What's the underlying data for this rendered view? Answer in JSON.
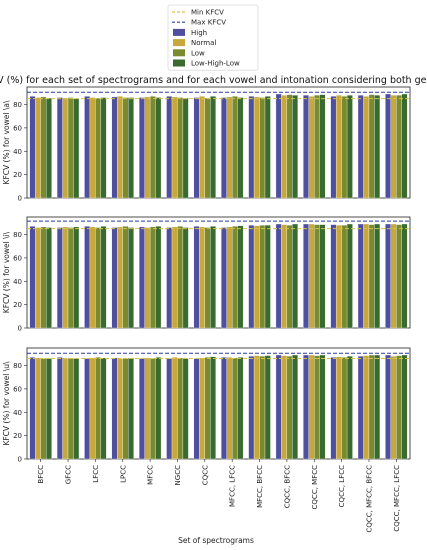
{
  "chart_data": {
    "type": "bar",
    "title": "KFCV (%) for each set of spectrograms and for each vowel and intonation considering both genders",
    "xlabel": "Set of spectrograms",
    "categories": [
      "BFCC",
      "GFCC",
      "LFCC",
      "LPCC",
      "MFCC",
      "NGCC",
      "CQCC",
      "MFCC, LFCC",
      "MFCC, BFCC",
      "CQCC, BFCC",
      "CQCC, MFCC",
      "CQCC, LFCC",
      "CQCC, MFCC, BFCC",
      "CQCC, MFCC, LFCC"
    ],
    "legend": {
      "position": "top-center",
      "entries": [
        {
          "label": "Min KFCV",
          "kind": "line",
          "color": "#d4c24a"
        },
        {
          "label": "Max KFCV",
          "kind": "line",
          "color": "#2b3b9c"
        },
        {
          "label": "High",
          "kind": "bar",
          "color": "#4f4fa0"
        },
        {
          "label": "Normal",
          "kind": "bar",
          "color": "#c8a83c"
        },
        {
          "label": "Low",
          "kind": "bar",
          "color": "#7a8a2e"
        },
        {
          "label": "Low-High-Low",
          "kind": "bar",
          "color": "#3a6b2e"
        }
      ]
    },
    "panels": [
      {
        "ylabel": "KFCV (%) for vowel \\a\\",
        "ylim": [
          0,
          95
        ],
        "yticks": [
          0,
          20,
          40,
          60,
          80
        ],
        "min_kfcv": 85,
        "max_kfcv": 90.5,
        "series": [
          {
            "name": "High",
            "values": [
              87,
              86,
              87,
              86.5,
              86,
              87,
              86,
              86,
              87,
              89,
              88,
              87,
              88,
              89
            ]
          },
          {
            "name": "Normal",
            "values": [
              86,
              85.5,
              86,
              87,
              86.5,
              86.5,
              87,
              86.5,
              86.5,
              88,
              87,
              88,
              87,
              88
            ]
          },
          {
            "name": "Low",
            "values": [
              86.5,
              86,
              85.5,
              86,
              87,
              86,
              85.5,
              87,
              86,
              88.5,
              88,
              87,
              88.5,
              88
            ]
          },
          {
            "name": "Low-High-Low",
            "values": [
              85.5,
              85,
              86,
              86,
              86,
              85.5,
              87,
              86,
              87,
              88,
              88.5,
              88,
              88,
              89
            ]
          }
        ]
      },
      {
        "ylabel": "KFCV (%) for vowel \\i\\",
        "ylim": [
          0,
          95
        ],
        "yticks": [
          0,
          20,
          40,
          60,
          80
        ],
        "min_kfcv": 85,
        "max_kfcv": 91.5,
        "series": [
          {
            "name": "High",
            "values": [
              87,
              86,
              87,
              86,
              86.5,
              86,
              87,
              86,
              88,
              89,
              89,
              88.5,
              89,
              89
            ]
          },
          {
            "name": "Normal",
            "values": [
              86,
              86.5,
              86.5,
              86.5,
              86,
              86.5,
              86.5,
              86.5,
              87.5,
              88.5,
              89,
              88,
              89,
              89
            ]
          },
          {
            "name": "Low",
            "values": [
              86.5,
              86,
              86,
              87,
              86.5,
              87,
              86,
              87,
              88,
              88,
              88.5,
              88,
              88.5,
              88.5
            ]
          },
          {
            "name": "Low-High-Low",
            "values": [
              86,
              86.5,
              87,
              86,
              87,
              86,
              87,
              87.5,
              88,
              89,
              88.5,
              89,
              89,
              89
            ]
          }
        ]
      },
      {
        "ylabel": "KFCV (%) for vowel \\u\\",
        "ylim": [
          0,
          95
        ],
        "yticks": [
          0,
          20,
          40,
          60,
          80
        ],
        "min_kfcv": 86,
        "max_kfcv": 90.5,
        "series": [
          {
            "name": "High",
            "values": [
              87,
              87,
              86,
              86.5,
              86,
              86,
              86,
              87,
              88,
              89,
              89,
              87,
              88,
              89
            ]
          },
          {
            "name": "Normal",
            "values": [
              86.5,
              86,
              86.5,
              86,
              86.5,
              87,
              86.5,
              87,
              88.5,
              88.5,
              89,
              87.5,
              88.5,
              88
            ]
          },
          {
            "name": "Low",
            "values": [
              86,
              86.5,
              87,
              86,
              86,
              86.5,
              87,
              86.5,
              88,
              88,
              88.5,
              87,
              89,
              88.5
            ]
          },
          {
            "name": "Low-High-Low",
            "values": [
              86,
              86,
              86.5,
              86.5,
              87,
              86,
              87.5,
              87,
              88.5,
              89,
              89,
              88,
              89,
              89
            ]
          }
        ]
      }
    ]
  }
}
